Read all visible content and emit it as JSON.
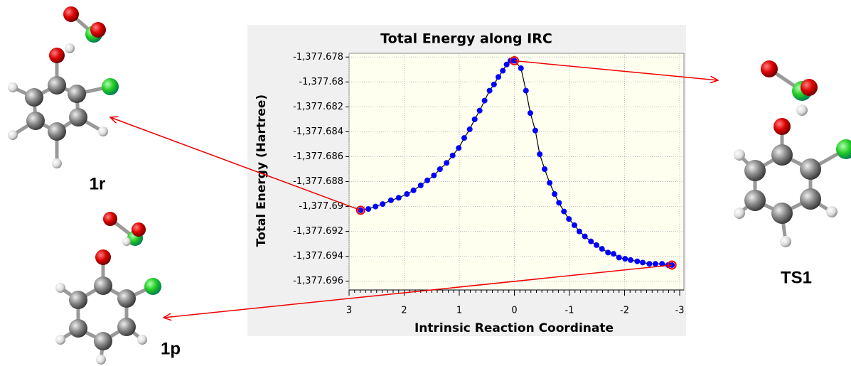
{
  "chart_data": {
    "type": "scatter-line",
    "title": "Total Energy along IRC",
    "xlabel": "Intrinsic Reaction Coordinate",
    "ylabel": "Total Energy (Hartree)",
    "x": [
      2.79,
      2.65,
      2.52,
      2.39,
      2.24,
      2.1,
      1.95,
      1.83,
      1.7,
      1.58,
      1.46,
      1.35,
      1.23,
      1.12,
      1.01,
      0.91,
      0.81,
      0.72,
      0.63,
      0.54,
      0.45,
      0.37,
      0.29,
      0.21,
      0.14,
      0.07,
      0,
      -0.12,
      -0.21,
      -0.29,
      -0.38,
      -0.46,
      -0.55,
      -0.64,
      -0.73,
      -0.81,
      -0.9,
      -0.99,
      -1.09,
      -1.18,
      -1.28,
      -1.39,
      -1.49,
      -1.59,
      -1.7,
      -1.8,
      -1.9,
      -2.01,
      -2.11,
      -2.23,
      -2.33,
      -2.45,
      -2.56,
      -2.68,
      -2.79,
      -2.86
    ],
    "values": [
      -1377.6903,
      -1377.6902,
      -1377.69,
      -1377.6898,
      -1377.6895,
      -1377.6893,
      -1377.689,
      -1377.6887,
      -1377.6883,
      -1377.6879,
      -1377.6875,
      -1377.687,
      -1377.6865,
      -1377.6859,
      -1377.6853,
      -1377.6845,
      -1377.6838,
      -1377.683,
      -1377.6823,
      -1377.6815,
      -1377.6807,
      -1377.6802,
      -1377.6796,
      -1377.6791,
      -1377.6786,
      -1377.6783,
      -1377.6783,
      -1377.6789,
      -1377.6807,
      -1377.6825,
      -1377.6839,
      -1377.6858,
      -1377.687,
      -1377.6881,
      -1377.689,
      -1377.6897,
      -1377.6904,
      -1377.691,
      -1377.6915,
      -1377.692,
      -1377.6924,
      -1377.6928,
      -1377.6931,
      -1377.6934,
      -1377.6937,
      -1377.6938,
      -1377.6941,
      -1377.6942,
      -1377.6943,
      -1377.6944,
      -1377.6945,
      -1377.6946,
      -1377.6946,
      -1377.6946,
      -1377.6947,
      -1377.6947
    ],
    "color": "#0000ff",
    "line_color": "#000000",
    "xlim": [
      3,
      -3
    ],
    "xticks": [
      3,
      2,
      1,
      0,
      -1,
      -2,
      -3
    ],
    "ylim": [
      -1377.6777,
      -1377.6967
    ],
    "yticks": [
      {
        "value": -1377.678,
        "label": "-1,377.678"
      },
      {
        "value": -1377.68,
        "label": "-1,377.68"
      },
      {
        "value": -1377.682,
        "label": "-1,377.682"
      },
      {
        "value": -1377.684,
        "label": "-1,377.684"
      },
      {
        "value": -1377.686,
        "label": "-1,377.686"
      },
      {
        "value": -1377.688,
        "label": "-1,377.688"
      },
      {
        "value": -1377.69,
        "label": "-1,377.69"
      },
      {
        "value": -1377.692,
        "label": "-1,377.692"
      },
      {
        "value": -1377.694,
        "label": "-1,377.694"
      },
      {
        "value": -1377.696,
        "label": "-1,377.696"
      }
    ],
    "grid": true,
    "annotations": [
      {
        "text": "1r",
        "point": 0
      },
      {
        "text": "TS1",
        "point": 26
      },
      {
        "text": "1p",
        "point": 55
      }
    ]
  }
}
